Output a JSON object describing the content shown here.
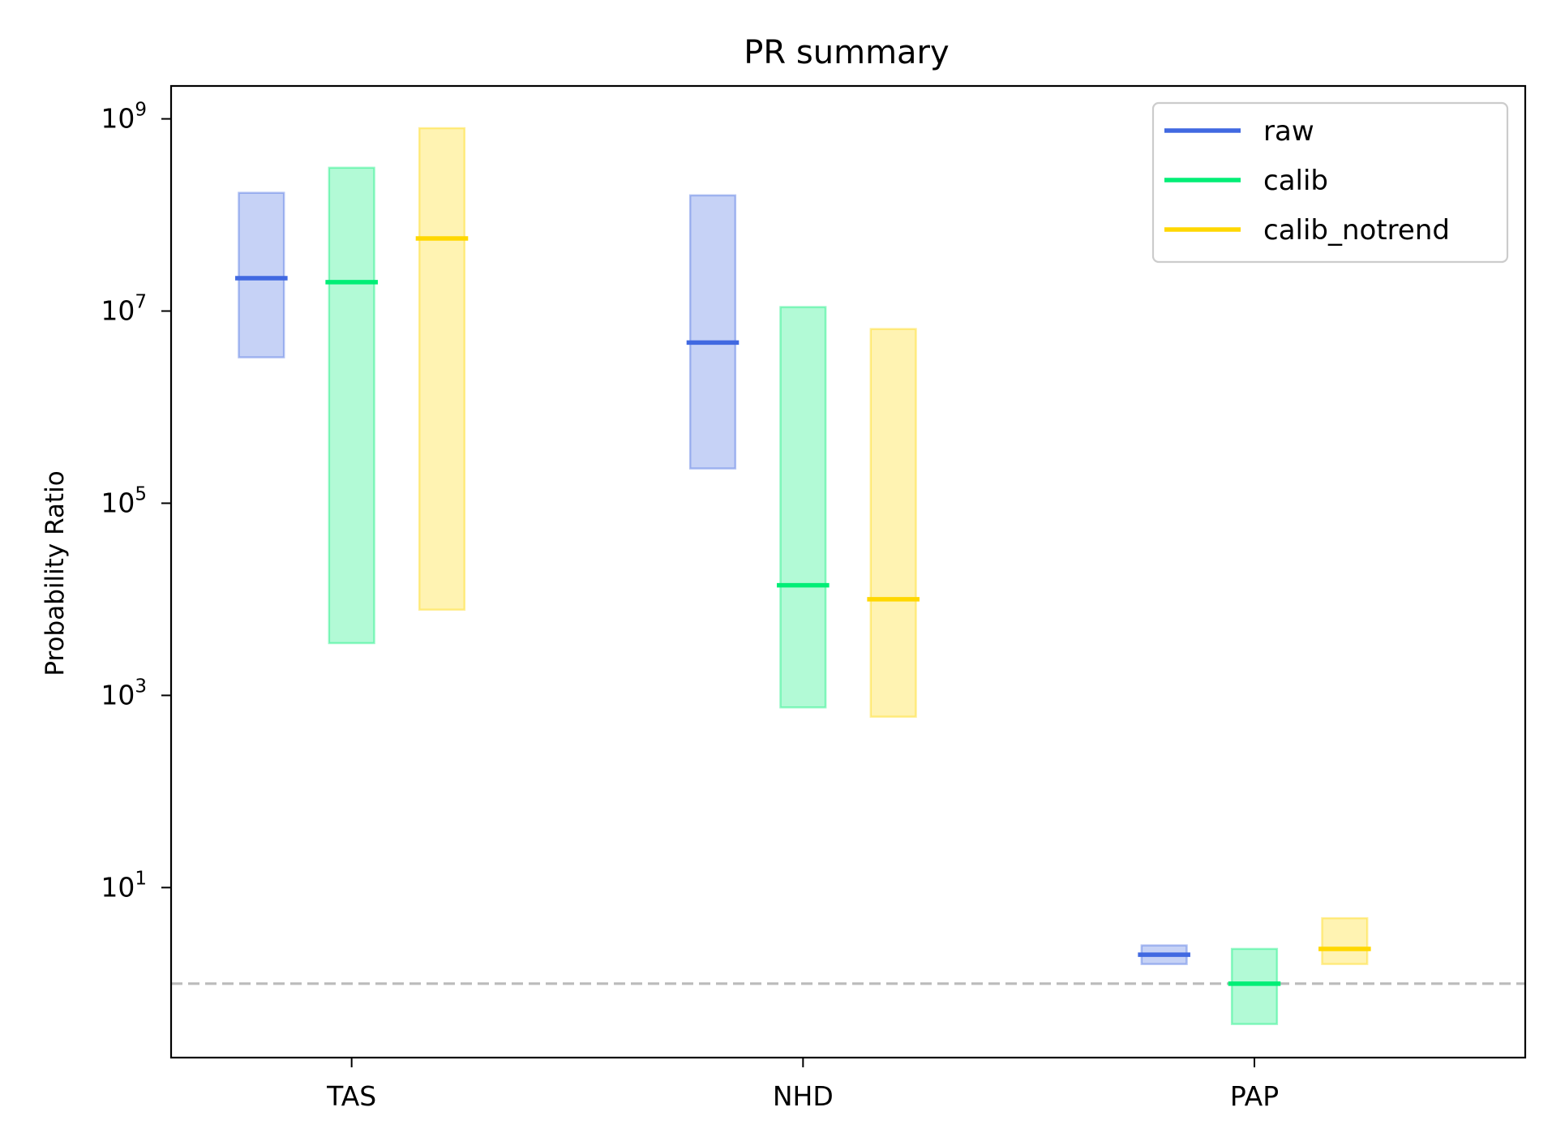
{
  "chart_data": {
    "type": "bar",
    "title": "PR summary",
    "xlabel": "",
    "ylabel": "Probability Ratio",
    "yscale": "log",
    "ylim": [
      0.17,
      2200000000.0
    ],
    "categories": [
      "TAS",
      "NHD",
      "PAP"
    ],
    "yticks": [
      {
        "value": 10,
        "base": "10",
        "exp": "1"
      },
      {
        "value": 1000,
        "base": "10",
        "exp": "3"
      },
      {
        "value": 100000,
        "base": "10",
        "exp": "5"
      },
      {
        "value": 10000000,
        "base": "10",
        "exp": "7"
      },
      {
        "value": 1000000000,
        "base": "10",
        "exp": "9"
      }
    ],
    "reference_line": {
      "value": 1,
      "style": "dashed",
      "color": "#bbbbbb"
    },
    "legend_position": "top-right",
    "grid": false,
    "series": [
      {
        "name": "raw",
        "color": "#4169e1",
        "values": [
          22000000,
          4700000,
          2.0
        ],
        "lower": [
          3300000,
          230000,
          1.6
        ],
        "upper": [
          170000000,
          160000000,
          2.5
        ]
      },
      {
        "name": "calib",
        "color": "#00ee76",
        "values": [
          20000000,
          14000,
          1.0
        ],
        "lower": [
          3500,
          750,
          0.38
        ],
        "upper": [
          310000000,
          11000000,
          2.3
        ]
      },
      {
        "name": "calib_notrend",
        "color": "#ffd700",
        "values": [
          57000000,
          10000,
          2.3
        ],
        "lower": [
          7800,
          600,
          1.6
        ],
        "upper": [
          800000000,
          6500000,
          4.8
        ]
      }
    ]
  }
}
